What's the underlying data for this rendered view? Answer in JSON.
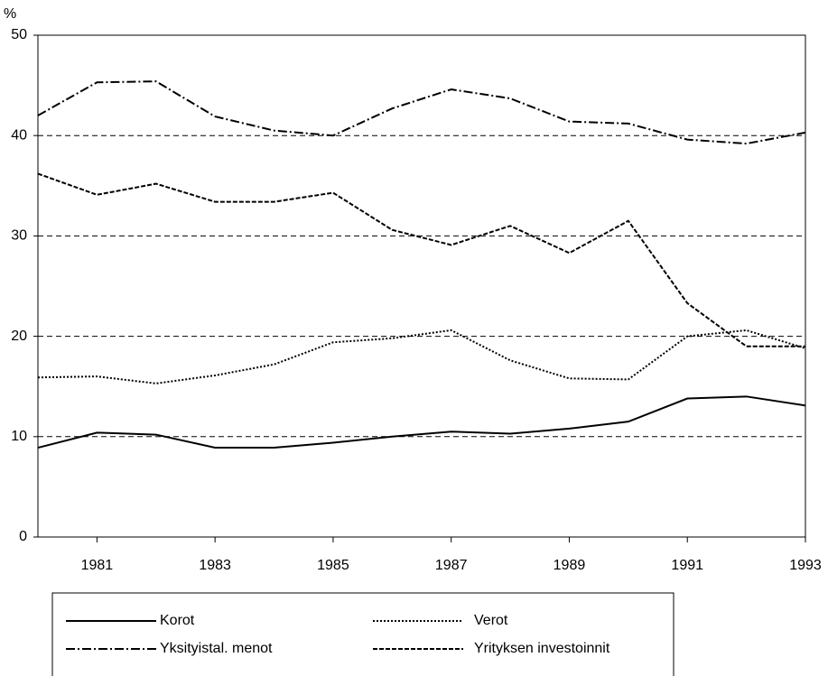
{
  "chart_data": {
    "type": "line",
    "y_label": "%",
    "x": [
      1980,
      1981,
      1982,
      1983,
      1984,
      1985,
      1986,
      1987,
      1988,
      1989,
      1990,
      1991,
      1992,
      1993
    ],
    "xlim": [
      1980,
      1993
    ],
    "xticks": [
      1981,
      1983,
      1985,
      1987,
      1989,
      1991,
      1993
    ],
    "ylim": [
      0,
      50
    ],
    "yticks": [
      0,
      10,
      20,
      30,
      40,
      50
    ],
    "grid": true,
    "series": [
      {
        "name": "Korot",
        "color": "#000000",
        "dash": "none",
        "values": [
          8.9,
          10.4,
          10.2,
          8.9,
          8.9,
          9.4,
          10.0,
          10.5,
          10.3,
          10.8,
          11.5,
          13.8,
          14.0,
          13.1
        ]
      },
      {
        "name": "Verot",
        "color": "#000000",
        "dash": "2 2",
        "values": [
          15.9,
          16.0,
          15.3,
          16.1,
          17.2,
          19.4,
          19.8,
          20.6,
          17.6,
          15.8,
          15.7,
          20.0,
          20.6,
          18.8
        ]
      },
      {
        "name": "Yksityistal. menot",
        "color": "#000000",
        "dash": "10 3 2 3",
        "values": [
          42.0,
          45.3,
          45.4,
          41.9,
          40.5,
          40.0,
          42.7,
          44.6,
          43.7,
          41.4,
          41.2,
          39.6,
          39.2,
          40.3
        ]
      },
      {
        "name": "Yrityksen investoinnit",
        "color": "#000000",
        "dash": "5 2",
        "values": [
          36.2,
          34.1,
          35.2,
          33.4,
          33.4,
          34.3,
          30.6,
          29.1,
          31.0,
          28.3,
          31.5,
          23.3,
          19.0,
          19.0
        ]
      }
    ]
  }
}
